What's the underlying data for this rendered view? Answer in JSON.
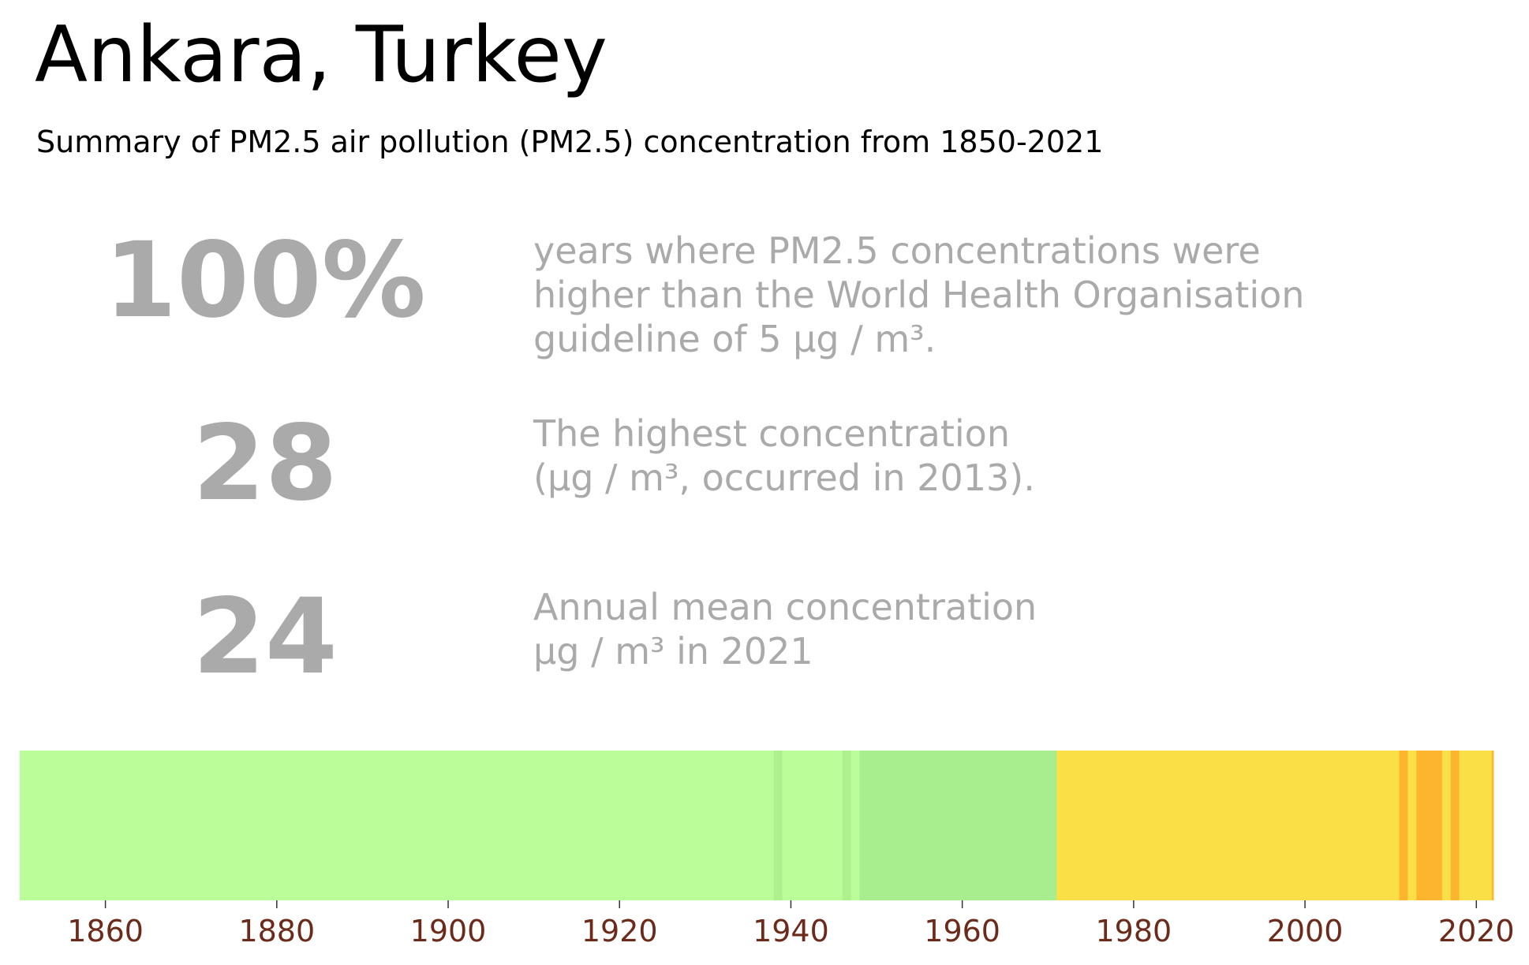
{
  "title": "Ankara, Turkey",
  "subtitle": "Summary of PM2.5 air pollution (PM2.5) concentration from 1850-2021",
  "stats": [
    {
      "value": "100%",
      "lines": [
        "years where PM2.5 concentrations were",
        "higher than the World Health Organisation",
        "guideline of 5 μg / m³."
      ]
    },
    {
      "value": "28",
      "lines": [
        "The highest concentration",
        "(μg / m³, occurred in 2013)."
      ]
    },
    {
      "value": "24",
      "lines": [
        "Annual mean concentration",
        "μg / m³ in 2021"
      ]
    }
  ],
  "chart_data": {
    "type": "heatmap",
    "xlim": [
      1850,
      2022
    ],
    "ticks": [
      "1860",
      "1880",
      "1900",
      "1920",
      "1940",
      "1960",
      "1980",
      "2000",
      "2020"
    ],
    "tick_values": [
      1860,
      1880,
      1900,
      1920,
      1940,
      1960,
      1980,
      2000,
      2020
    ],
    "tick_color": "#6b2a1a",
    "segments": [
      {
        "start": 1850,
        "end": 1938,
        "color": "#bbfd98"
      },
      {
        "start": 1938,
        "end": 1939,
        "color": "#aef08d"
      },
      {
        "start": 1939,
        "end": 1946,
        "color": "#bbfd98"
      },
      {
        "start": 1946,
        "end": 1947,
        "color": "#aef08d"
      },
      {
        "start": 1947,
        "end": 1948,
        "color": "#bbfd98"
      },
      {
        "start": 1948,
        "end": 1971,
        "color": "#a8ee8f"
      },
      {
        "start": 1971,
        "end": 2011,
        "color": "#fadf46"
      },
      {
        "start": 2011,
        "end": 2012,
        "color": "#fdb52f"
      },
      {
        "start": 2012,
        "end": 2013,
        "color": "#fadf46"
      },
      {
        "start": 2013,
        "end": 2016,
        "color": "#fdb52f"
      },
      {
        "start": 2016,
        "end": 2017,
        "color": "#fadf46"
      },
      {
        "start": 2017,
        "end": 2018,
        "color": "#fdb52f"
      },
      {
        "start": 2018,
        "end": 2021.8,
        "color": "#fadf46"
      },
      {
        "start": 2021.8,
        "end": 2022,
        "color": "#fdb52f"
      }
    ]
  }
}
